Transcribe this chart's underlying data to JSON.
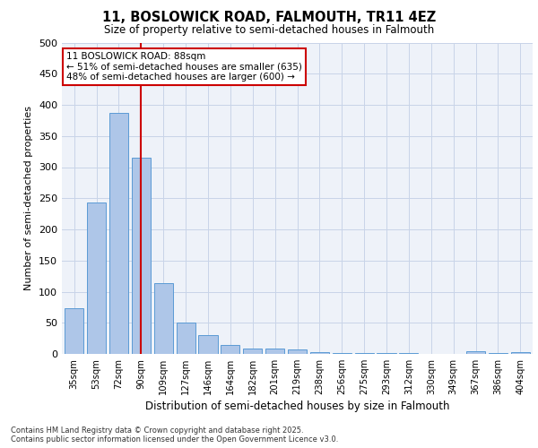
{
  "title": "11, BOSLOWICK ROAD, FALMOUTH, TR11 4EZ",
  "subtitle": "Size of property relative to semi-detached houses in Falmouth",
  "xlabel": "Distribution of semi-detached houses by size in Falmouth",
  "ylabel": "Number of semi-detached properties",
  "categories": [
    "35sqm",
    "53sqm",
    "72sqm",
    "90sqm",
    "109sqm",
    "127sqm",
    "146sqm",
    "164sqm",
    "182sqm",
    "201sqm",
    "219sqm",
    "238sqm",
    "256sqm",
    "275sqm",
    "293sqm",
    "312sqm",
    "330sqm",
    "349sqm",
    "367sqm",
    "386sqm",
    "404sqm"
  ],
  "values": [
    74,
    243,
    387,
    315,
    113,
    50,
    30,
    15,
    8,
    8,
    7,
    3,
    2,
    2,
    1,
    1,
    0,
    0,
    4,
    1,
    3
  ],
  "bar_color": "#aec6e8",
  "bar_edge_color": "#5b9bd5",
  "property_label": "11 BOSLOWICK ROAD: 88sqm",
  "annotation_line1": "← 51% of semi-detached houses are smaller (635)",
  "annotation_line2": "48% of semi-detached houses are larger (600) →",
  "vline_color": "#cc0000",
  "vline_x_index": 3.0,
  "annotation_box_color": "#cc0000",
  "ylim": [
    0,
    500
  ],
  "yticks": [
    0,
    50,
    100,
    150,
    200,
    250,
    300,
    350,
    400,
    450,
    500
  ],
  "grid_color": "#d0d8e8",
  "background_color": "#eef2f9",
  "footnote_line1": "Contains HM Land Registry data © Crown copyright and database right 2025.",
  "footnote_line2": "Contains public sector information licensed under the Open Government Licence v3.0."
}
